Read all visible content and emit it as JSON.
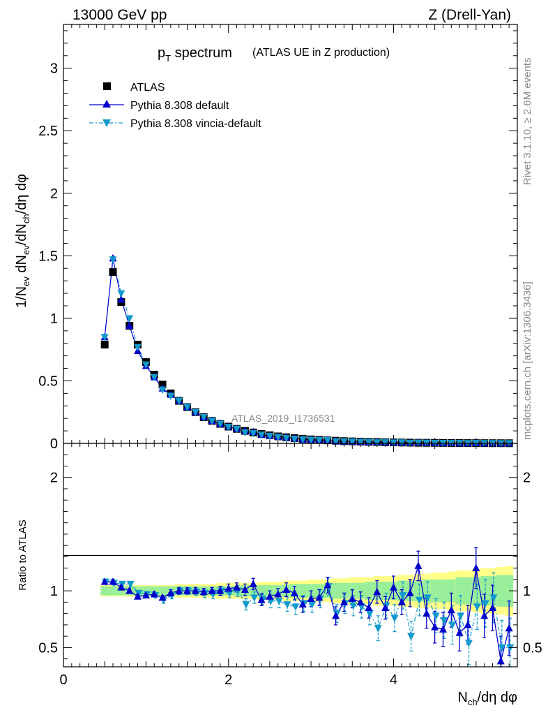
{
  "header": {
    "left": "13000 GeV pp",
    "right": "Z (Drell-Yan)"
  },
  "plot_title": {
    "main": "p",
    "main_sub": "T",
    "main_rest": " spectrum",
    "paren": "(ATLAS UE in Z production)"
  },
  "side_labels": {
    "rivet": "Rivet 3.1.10, ≥ 2.6M events",
    "mcplots": "mcplots.cern.ch [arXiv:1306.3436]"
  },
  "watermark": "ATLAS_2019_I1736531",
  "axes": {
    "ylabel_top": "1/N_ev dN_ev/dN_ch/dη dφ",
    "ylabel_bottom": "Ratio to ATLAS",
    "xlabel": "N_ch/dη dφ"
  },
  "legend": [
    {
      "label": "ATLAS",
      "color": "#000000",
      "marker": "square"
    },
    {
      "label": "Pythia 8.308 default",
      "color": "#0000cc",
      "marker": "triangle-up"
    },
    {
      "label": "Pythia 8.308 vincia-default",
      "color": "#1199cc",
      "marker": "triangle-down"
    }
  ],
  "chart_data": {
    "type": "line",
    "xlim": [
      0,
      5.5
    ],
    "ylim_main": [
      0,
      3.35
    ],
    "ylim_ratio": [
      0.33,
      2.3
    ],
    "x_ticks": [
      "0",
      "2",
      "4"
    ],
    "y_ticks_main": [
      "0",
      "0.5",
      "1",
      "1.5",
      "2",
      "2.5",
      "3"
    ],
    "y_ticks_ratio": [
      "0.5",
      "1",
      "2"
    ],
    "x": [
      0.5,
      0.6,
      0.7,
      0.8,
      0.9,
      1.0,
      1.1,
      1.2,
      1.3,
      1.4,
      1.5,
      1.6,
      1.7,
      1.8,
      1.9,
      2.0,
      2.1,
      2.2,
      2.3,
      2.4,
      2.5,
      2.6,
      2.7,
      2.8,
      2.9,
      3.0,
      3.1,
      3.2,
      3.3,
      3.4,
      3.5,
      3.6,
      3.7,
      3.8,
      3.9,
      4.0,
      4.1,
      4.2,
      4.3,
      4.4,
      4.5,
      4.6,
      4.7,
      4.8,
      4.9,
      5.0,
      5.1,
      5.2,
      5.3,
      5.4
    ],
    "series": [
      {
        "name": "ATLAS",
        "values": [
          0.79,
          1.37,
          1.13,
          0.94,
          0.79,
          0.65,
          0.55,
          0.47,
          0.4,
          0.34,
          0.29,
          0.25,
          0.21,
          0.18,
          0.156,
          0.134,
          0.116,
          0.1,
          0.087,
          0.075,
          0.065,
          0.056,
          0.049,
          0.042,
          0.037,
          0.032,
          0.028,
          0.024,
          0.021,
          0.018,
          0.016,
          0.014,
          0.012,
          0.011,
          0.009,
          0.008,
          0.007,
          0.006,
          0.005,
          0.0046,
          0.004,
          0.0035,
          0.003,
          0.0027,
          0.0024,
          0.0021,
          0.0018,
          0.0016,
          0.0014,
          0.0012
        ]
      },
      {
        "name": "Pythia 8.308 default",
        "values": [
          0.85,
          1.48,
          1.15,
          0.94,
          0.74,
          0.62,
          0.53,
          0.44,
          0.39,
          0.34,
          0.29,
          0.25,
          0.21,
          0.18,
          0.156,
          0.136,
          0.118,
          0.101,
          0.092,
          0.069,
          0.062,
          0.054,
          0.049,
          0.041,
          0.032,
          0.03,
          0.026,
          0.025,
          0.016,
          0.016,
          0.015,
          0.013,
          0.01,
          0.011,
          0.008,
          0.008,
          0.0063,
          0.0059,
          0.0061,
          0.0037,
          0.0027,
          0.0023,
          0.0025,
          0.0017,
          0.0017,
          0.0025,
          0.0014,
          0.0014,
          0.0005,
          0.0008
        ]
      },
      {
        "name": "Pythia 8.308 vincia-default",
        "values": [
          0.85,
          1.47,
          1.2,
          1.0,
          0.77,
          0.63,
          0.53,
          0.43,
          0.38,
          0.34,
          0.29,
          0.25,
          0.21,
          0.18,
          0.156,
          0.131,
          0.116,
          0.088,
          0.082,
          0.07,
          0.059,
          0.051,
          0.043,
          0.036,
          0.033,
          0.028,
          0.026,
          0.025,
          0.017,
          0.016,
          0.014,
          0.012,
          0.0096,
          0.0074,
          0.0078,
          0.0061,
          0.0067,
          0.0036,
          0.0046,
          0.0043,
          0.0031,
          0.0026,
          0.0021,
          0.0021,
          0.0013,
          0.0018,
          0.0016,
          0.0015,
          0.0007,
          0.0006
        ]
      }
    ],
    "ratio": {
      "default": [
        1.08,
        1.08,
        1.03,
        1.0,
        0.95,
        0.96,
        0.97,
        0.94,
        0.98,
        1.0,
        1.0,
        1.0,
        0.99,
        1.0,
        1.0,
        1.02,
        1.03,
        1.01,
        1.06,
        0.92,
        0.95,
        0.97,
        1.01,
        0.98,
        0.88,
        0.93,
        0.94,
        1.05,
        0.78,
        0.9,
        0.93,
        0.9,
        0.85,
        0.99,
        0.85,
        1.03,
        0.9,
        0.98,
        1.22,
        0.8,
        0.68,
        0.66,
        0.83,
        0.63,
        0.7,
        1.2,
        0.78,
        0.85,
        0.38,
        0.67
      ],
      "vincia": [
        1.08,
        1.07,
        1.06,
        1.06,
        0.98,
        0.97,
        0.96,
        0.92,
        0.96,
        1.0,
        1.0,
        0.99,
        0.98,
        0.97,
        1.0,
        0.98,
        1.0,
        0.88,
        0.94,
        0.93,
        0.91,
        0.91,
        0.88,
        0.86,
        0.89,
        0.88,
        0.93,
        1.04,
        0.8,
        0.89,
        0.87,
        0.86,
        0.8,
        0.67,
        0.87,
        0.76,
        0.96,
        0.6,
        0.92,
        0.94,
        0.78,
        0.74,
        0.7,
        0.78,
        0.54,
        0.86,
        0.89,
        0.94,
        0.5,
        0.5
      ]
    },
    "bands": {
      "inner": [
        0.04,
        0.04,
        0.04,
        0.04,
        0.04,
        0.04,
        0.04,
        0.04,
        0.04,
        0.04,
        0.04,
        0.04,
        0.04,
        0.04,
        0.04,
        0.04,
        0.045,
        0.05,
        0.05,
        0.05,
        0.05,
        0.05,
        0.055,
        0.06,
        0.06,
        0.06,
        0.06,
        0.06,
        0.07,
        0.07,
        0.07,
        0.07,
        0.08,
        0.08,
        0.08,
        0.08,
        0.09,
        0.09,
        0.09,
        0.1,
        0.1,
        0.1,
        0.1,
        0.12,
        0.12,
        0.12,
        0.13,
        0.13,
        0.14,
        0.14
      ],
      "outer": [
        0.05,
        0.05,
        0.05,
        0.05,
        0.05,
        0.05,
        0.05,
        0.05,
        0.05,
        0.06,
        0.06,
        0.06,
        0.06,
        0.06,
        0.07,
        0.07,
        0.07,
        0.07,
        0.07,
        0.08,
        0.08,
        0.08,
        0.09,
        0.09,
        0.09,
        0.1,
        0.1,
        0.1,
        0.11,
        0.11,
        0.12,
        0.12,
        0.12,
        0.13,
        0.13,
        0.13,
        0.14,
        0.14,
        0.15,
        0.15,
        0.16,
        0.16,
        0.17,
        0.18,
        0.18,
        0.19,
        0.2,
        0.2,
        0.21,
        0.22
      ]
    },
    "ratio_errors_default": [
      0.02,
      0.02,
      0.02,
      0.02,
      0.02,
      0.02,
      0.02,
      0.02,
      0.03,
      0.03,
      0.03,
      0.03,
      0.03,
      0.03,
      0.04,
      0.04,
      0.04,
      0.05,
      0.05,
      0.05,
      0.05,
      0.05,
      0.06,
      0.06,
      0.07,
      0.07,
      0.07,
      0.07,
      0.08,
      0.08,
      0.08,
      0.09,
      0.09,
      0.1,
      0.1,
      0.1,
      0.11,
      0.12,
      0.13,
      0.13,
      0.14,
      0.15,
      0.15,
      0.16,
      0.17,
      0.18,
      0.19,
      0.2,
      0.22,
      0.24
    ],
    "ratio_errors_vincia": [
      0.02,
      0.02,
      0.02,
      0.02,
      0.02,
      0.02,
      0.02,
      0.03,
      0.03,
      0.03,
      0.03,
      0.03,
      0.04,
      0.04,
      0.04,
      0.04,
      0.05,
      0.05,
      0.05,
      0.05,
      0.06,
      0.06,
      0.06,
      0.07,
      0.07,
      0.07,
      0.08,
      0.08,
      0.08,
      0.09,
      0.09,
      0.1,
      0.1,
      0.11,
      0.11,
      0.12,
      0.12,
      0.13,
      0.14,
      0.14,
      0.15,
      0.16,
      0.17,
      0.18,
      0.19,
      0.2,
      0.21,
      0.22,
      0.24,
      0.26
    ]
  }
}
